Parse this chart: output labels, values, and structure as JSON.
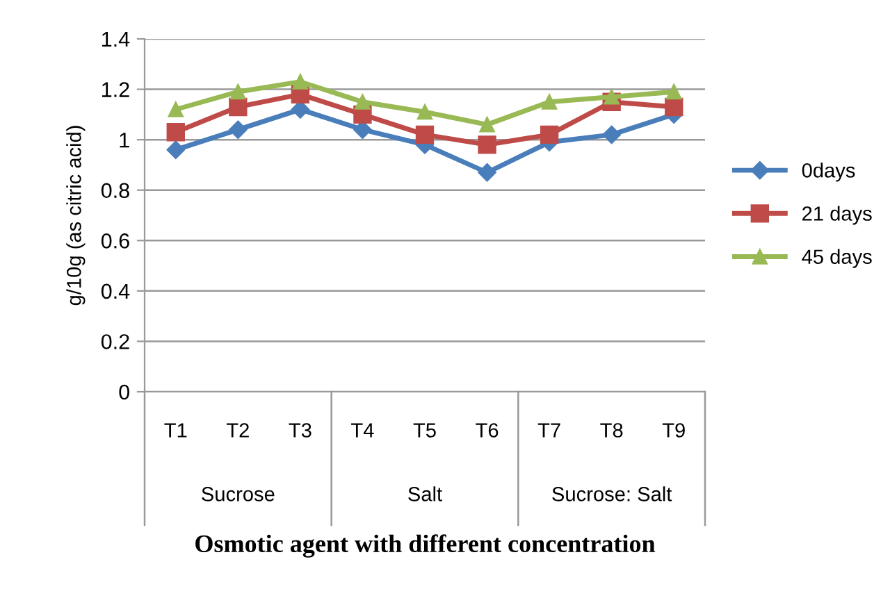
{
  "chart_data": {
    "type": "line",
    "xlabel": "Osmotic agent with different concentration",
    "ylabel": "g/10g (as citric acid)",
    "categories": [
      "T1",
      "T2",
      "T3",
      "T4",
      "T5",
      "T6",
      "T7",
      "T8",
      "T9"
    ],
    "series": [
      {
        "name": "0days",
        "color": "#4a7ebb",
        "marker": "diamond",
        "values": [
          0.96,
          1.04,
          1.12,
          1.04,
          0.98,
          0.87,
          0.99,
          1.02,
          1.1
        ]
      },
      {
        "name": "21 days",
        "color": "#be4b48",
        "marker": "square",
        "values": [
          1.03,
          1.13,
          1.18,
          1.1,
          1.02,
          0.98,
          1.02,
          1.15,
          1.13
        ]
      },
      {
        "name": "45 days",
        "color": "#98b954",
        "marker": "triangle",
        "values": [
          1.12,
          1.19,
          1.23,
          1.15,
          1.11,
          1.06,
          1.15,
          1.17,
          1.19
        ]
      }
    ],
    "annotations": [
      "Sucrose",
      "Salt",
      "Sucrose: Salt"
    ],
    "ylim": [
      0,
      1.4
    ],
    "yticks": [
      0,
      {
        "value": 0.2,
        "label": "0.2"
      },
      {
        "value": 0.4,
        "label": "0.4"
      },
      {
        "value": 0.6,
        "label": "0.6"
      },
      {
        "value": 0.8,
        "label": "0.8"
      },
      1,
      {
        "value": 1.2,
        "label": "1.2"
      },
      {
        "value": 1.4,
        "label": "1.4"
      }
    ],
    "grid": "y",
    "legend": "right",
    "line_style": "solid"
  }
}
